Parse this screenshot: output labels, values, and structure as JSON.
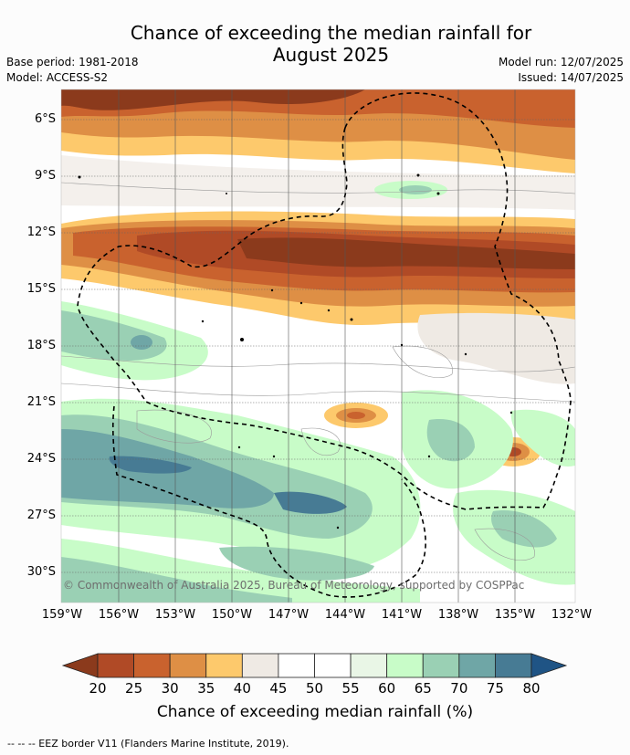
{
  "title_line1": "Chance of exceeding the median rainfall for",
  "title_line2": "August 2025",
  "base_period": "Base period: 1981-2018",
  "model": "Model: ACCESS-S2",
  "model_run": "Model run: 12/07/2025",
  "issued": "Issued: 14/07/2025",
  "copyright": "© Commonwealth of Australia 2025, Bureau of Meteorology, supported by COSPPac",
  "lat_labels": [
    "6°S",
    "9°S",
    "12°S",
    "15°S",
    "18°S",
    "21°S",
    "24°S",
    "27°S",
    "30°S"
  ],
  "lon_labels": [
    "159°W",
    "156°W",
    "153°W",
    "150°W",
    "147°W",
    "144°W",
    "141°W",
    "138°W",
    "135°W",
    "132°W"
  ],
  "colorbar": {
    "title": "Chance of exceeding median rainfall (%)",
    "ticks": [
      "20",
      "25",
      "30",
      "35",
      "40",
      "45",
      "50",
      "55",
      "60",
      "65",
      "70",
      "75",
      "80"
    ],
    "colors": [
      "#8b3a1c",
      "#b04a26",
      "#c9622e",
      "#de8f45",
      "#fdc96c",
      "#efeae4",
      "#ffffff",
      "#ffffff",
      "#e9f6e6",
      "#c8fcc8",
      "#9ad0b4",
      "#6fa6a6",
      "#477b94",
      "#1f5485"
    ]
  },
  "legend_note": "--  --  -- EEZ border V11 (Flanders Marine Institute, 2019)."
}
